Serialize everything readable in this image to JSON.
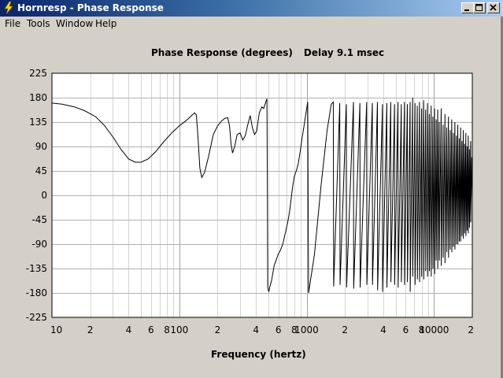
{
  "window": {
    "title": "Hornresp - Phase Response",
    "buttons": [
      "minimize",
      "maximize",
      "close"
    ]
  },
  "menu": [
    "File",
    "Tools",
    "Window",
    "Help"
  ],
  "icons": {
    "app": "lightning-icon",
    "minimize": "minimize-icon",
    "maximize": "maximize-icon",
    "close": "close-icon"
  },
  "chart_data": {
    "type": "line",
    "title_main": "Phase Response (degrees)",
    "title_extra": "Delay 9.1 msec",
    "xlabel": "Frequency (hertz)",
    "ylabel": "",
    "xscale": "log",
    "xlim": [
      10,
      20000
    ],
    "ylim": [
      -225,
      225
    ],
    "grid": true,
    "y_ticks": [
      225,
      180,
      135,
      90,
      45,
      0,
      -45,
      -90,
      -135,
      -180,
      -225
    ],
    "x_tick_labels": [
      {
        "value": 10,
        "label": "10"
      },
      {
        "value": 20,
        "label": "2"
      },
      {
        "value": 40,
        "label": "4"
      },
      {
        "value": 60,
        "label": "6"
      },
      {
        "value": 80,
        "label": "8"
      },
      {
        "value": 100,
        "label": "100"
      },
      {
        "value": 200,
        "label": "2"
      },
      {
        "value": 400,
        "label": "4"
      },
      {
        "value": 600,
        "label": "6"
      },
      {
        "value": 800,
        "label": "8"
      },
      {
        "value": 1000,
        "label": "1000"
      },
      {
        "value": 2000,
        "label": "2"
      },
      {
        "value": 4000,
        "label": "4"
      },
      {
        "value": 6000,
        "label": "6"
      },
      {
        "value": 8000,
        "label": "8"
      },
      {
        "value": 10000,
        "label": "10000"
      },
      {
        "value": 20000,
        "label": "2"
      }
    ],
    "series": [
      {
        "points": [
          [
            10,
            170
          ],
          [
            12,
            168
          ],
          [
            15,
            163
          ],
          [
            18,
            156
          ],
          [
            22,
            145
          ],
          [
            26,
            128
          ],
          [
            30,
            108
          ],
          [
            35,
            84
          ],
          [
            40,
            67
          ],
          [
            45,
            61
          ],
          [
            50,
            61
          ],
          [
            57,
            67
          ],
          [
            65,
            80
          ],
          [
            75,
            98
          ],
          [
            88,
            116
          ],
          [
            100,
            128
          ],
          [
            115,
            139
          ],
          [
            125,
            147
          ],
          [
            132,
            152
          ],
          [
            136,
            148
          ],
          [
            140,
            110
          ],
          [
            145,
            50
          ],
          [
            150,
            33
          ],
          [
            158,
            42
          ],
          [
            170,
            72
          ],
          [
            185,
            112
          ],
          [
            200,
            128
          ],
          [
            215,
            137
          ],
          [
            228,
            142
          ],
          [
            240,
            143
          ],
          [
            248,
            128
          ],
          [
            255,
            95
          ],
          [
            262,
            78
          ],
          [
            272,
            90
          ],
          [
            285,
            112
          ],
          [
            300,
            115
          ],
          [
            315,
            102
          ],
          [
            330,
            110
          ],
          [
            345,
            130
          ],
          [
            360,
            147
          ],
          [
            375,
            125
          ],
          [
            390,
            112
          ],
          [
            405,
            118
          ],
          [
            425,
            152
          ],
          [
            445,
            163
          ],
          [
            460,
            160
          ],
          [
            475,
            170
          ],
          [
            488,
            178
          ],
          [
            492,
            0
          ],
          [
            495,
            -170
          ],
          [
            505,
            -178
          ],
          [
            515,
            -168
          ],
          [
            530,
            -158
          ],
          [
            555,
            -130
          ],
          [
            575,
            -120
          ],
          [
            600,
            -108
          ],
          [
            620,
            -102
          ],
          [
            650,
            -90
          ],
          [
            680,
            -70
          ],
          [
            710,
            -50
          ],
          [
            740,
            -25
          ],
          [
            770,
            10
          ],
          [
            800,
            35
          ],
          [
            830,
            45
          ],
          [
            860,
            58
          ],
          [
            890,
            80
          ],
          [
            920,
            105
          ],
          [
            950,
            125
          ],
          [
            985,
            150
          ],
          [
            1020,
            172
          ],
          [
            1035,
            -180
          ],
          [
            1150,
            -110
          ],
          [
            1300,
            20
          ],
          [
            1450,
            120
          ],
          [
            1560,
            168
          ],
          [
            1620,
            172
          ],
          [
            1630,
            -168
          ],
          [
            1820,
            170
          ],
          [
            1830,
            -165
          ],
          [
            2050,
            168
          ],
          [
            2060,
            -170
          ],
          [
            2330,
            172
          ],
          [
            2340,
            -172
          ],
          [
            2620,
            170
          ],
          [
            2630,
            -170
          ],
          [
            2960,
            172
          ],
          [
            2970,
            -165
          ],
          [
            3280,
            170
          ],
          [
            3290,
            -165
          ],
          [
            3600,
            172
          ],
          [
            3610,
            -175
          ],
          [
            3940,
            168
          ],
          [
            3950,
            -178
          ],
          [
            4260,
            170
          ],
          [
            4270,
            -170
          ],
          [
            4580,
            172
          ],
          [
            4590,
            -160
          ],
          [
            4900,
            168
          ],
          [
            4910,
            -165
          ],
          [
            5220,
            172
          ],
          [
            5230,
            -170
          ],
          [
            5540,
            168
          ],
          [
            5550,
            -160
          ],
          [
            5860,
            172
          ],
          [
            5870,
            -165
          ],
          [
            6180,
            168
          ],
          [
            6190,
            -160
          ],
          [
            6500,
            172
          ],
          [
            6510,
            -178
          ],
          [
            6800,
            180
          ],
          [
            6810,
            -150
          ],
          [
            7100,
            170
          ],
          [
            7110,
            -165
          ],
          [
            7400,
            165
          ],
          [
            7410,
            -155
          ],
          [
            7700,
            172
          ],
          [
            7710,
            -160
          ],
          [
            8000,
            160
          ],
          [
            8010,
            -150
          ],
          [
            8300,
            175
          ],
          [
            8310,
            -155
          ],
          [
            8600,
            158
          ],
          [
            8610,
            -140
          ],
          [
            8900,
            170
          ],
          [
            8910,
            -150
          ],
          [
            9200,
            150
          ],
          [
            9210,
            -140
          ],
          [
            9500,
            165
          ],
          [
            9510,
            -150
          ],
          [
            9800,
            145
          ],
          [
            9810,
            -135
          ],
          [
            10100,
            160
          ],
          [
            10110,
            -145
          ],
          [
            10400,
            140
          ],
          [
            10410,
            -120
          ],
          [
            10700,
            158
          ],
          [
            10710,
            -135
          ],
          [
            11000,
            135
          ],
          [
            11010,
            -120
          ],
          [
            11400,
            160
          ],
          [
            11410,
            -130
          ],
          [
            11800,
            130
          ],
          [
            11810,
            -115
          ],
          [
            12200,
            150
          ],
          [
            12210,
            -125
          ],
          [
            12600,
            125
          ],
          [
            12610,
            -105
          ],
          [
            13000,
            145
          ],
          [
            13010,
            -115
          ],
          [
            13400,
            120
          ],
          [
            13410,
            -100
          ],
          [
            13800,
            140
          ],
          [
            13810,
            -105
          ],
          [
            14200,
            115
          ],
          [
            14210,
            -95
          ],
          [
            14600,
            135
          ],
          [
            14610,
            -100
          ],
          [
            15000,
            110
          ],
          [
            15010,
            -90
          ],
          [
            15400,
            130
          ],
          [
            15410,
            -90
          ],
          [
            15800,
            105
          ],
          [
            15810,
            -85
          ],
          [
            16200,
            125
          ],
          [
            16210,
            -85
          ],
          [
            16600,
            100
          ],
          [
            16610,
            -75
          ],
          [
            17000,
            120
          ],
          [
            17010,
            -80
          ],
          [
            17400,
            95
          ],
          [
            17410,
            -70
          ],
          [
            17800,
            115
          ],
          [
            17810,
            -75
          ],
          [
            18200,
            90
          ],
          [
            18210,
            -65
          ],
          [
            18600,
            110
          ],
          [
            18610,
            -70
          ],
          [
            19000,
            85
          ],
          [
            19010,
            -60
          ],
          [
            19400,
            100
          ],
          [
            19410,
            -50
          ],
          [
            19800,
            70
          ],
          [
            20000,
            -15
          ]
        ]
      }
    ]
  }
}
